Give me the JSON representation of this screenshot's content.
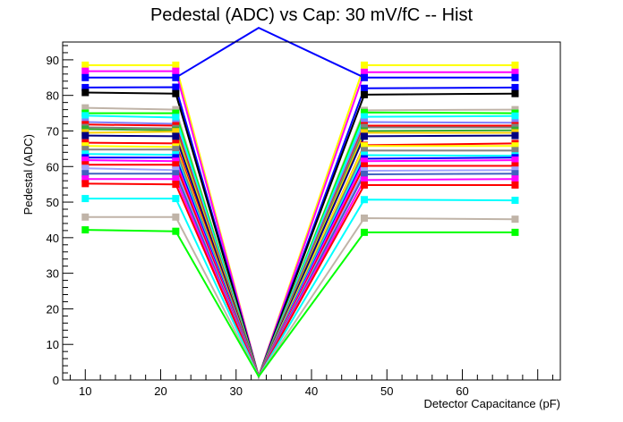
{
  "chart_data": {
    "type": "line",
    "title": "Pedestal (ADC) vs Cap: 30 mV/fC -- Hist",
    "xlabel": "Detector Capacitance (pF)",
    "ylabel": "Pedestal (ADC)",
    "xlim": [
      7,
      73
    ],
    "ylim": [
      0,
      95
    ],
    "xticks": [
      "10",
      "20",
      "30",
      "40",
      "50",
      "60"
    ],
    "yticks": [
      "0",
      "10",
      "20",
      "30",
      "40",
      "50",
      "60",
      "70",
      "80",
      "90"
    ],
    "x": [
      10,
      22,
      33,
      47,
      67
    ],
    "grid": false,
    "series": [
      {
        "color": "#ffff00",
        "values": [
          88.5,
          88.5,
          1,
          88.5,
          88.5
        ]
      },
      {
        "color": "#ff00ff",
        "values": [
          86.8,
          86.8,
          1,
          86.5,
          86.5
        ]
      },
      {
        "color": "#0000ff",
        "values": [
          82.2,
          82.3,
          1,
          82.0,
          82.2
        ]
      },
      {
        "color": "#000000",
        "values": [
          80.8,
          80.5,
          1,
          80.2,
          80.5
        ]
      },
      {
        "color": "#c0b4a8",
        "values": [
          76.5,
          76.0,
          1,
          75.8,
          76.0
        ]
      },
      {
        "color": "#00ff00",
        "values": [
          75.0,
          75.0,
          1,
          75.2,
          75.0
        ]
      },
      {
        "color": "#00ffff",
        "values": [
          74.3,
          73.8,
          1,
          74.0,
          74.2
        ]
      },
      {
        "color": "#8080ff",
        "values": [
          72.5,
          72.0,
          1,
          72.5,
          72.3
        ]
      },
      {
        "color": "#ff0000",
        "values": [
          71.8,
          71.5,
          1,
          71.5,
          71.5
        ]
      },
      {
        "color": "#808080",
        "values": [
          71.0,
          70.7,
          1,
          71.0,
          71.0
        ]
      },
      {
        "color": "#33aa33",
        "values": [
          70.5,
          70.2,
          1,
          70.0,
          70.2
        ]
      },
      {
        "color": "#ffd000",
        "values": [
          69.5,
          69.8,
          1,
          69.5,
          69.5
        ]
      },
      {
        "color": "#000080",
        "values": [
          68.7,
          68.5,
          1,
          68.5,
          68.7
        ]
      },
      {
        "color": "#ff0000",
        "values": [
          66.7,
          66.5,
          1,
          66.0,
          66.5
        ]
      },
      {
        "color": "#ffff00",
        "values": [
          65.8,
          65.5,
          1,
          65.8,
          65.8
        ]
      },
      {
        "color": "#808080",
        "values": [
          64.8,
          64.8,
          1,
          64.5,
          64.5
        ]
      },
      {
        "color": "#00ffff",
        "values": [
          63.5,
          63.3,
          1,
          63.2,
          63.0
        ]
      },
      {
        "color": "#0000ff",
        "values": [
          62.5,
          62.5,
          1,
          62.2,
          62.5
        ]
      },
      {
        "color": "#ff00ff",
        "values": [
          61.8,
          61.5,
          1,
          61.5,
          61.8
        ]
      },
      {
        "color": "#ff0000",
        "values": [
          60.5,
          60.5,
          1,
          60.2,
          60.2
        ]
      },
      {
        "color": "#a0a0ff",
        "values": [
          59.5,
          59.0,
          1,
          58.8,
          59.0
        ]
      },
      {
        "color": "#4060c0",
        "values": [
          58.0,
          58.0,
          1,
          57.8,
          58.0
        ]
      },
      {
        "color": "#ff00ff",
        "values": [
          56.5,
          56.5,
          1,
          56.2,
          56.5
        ]
      },
      {
        "color": "#ff0000",
        "values": [
          55.2,
          55.0,
          1,
          54.8,
          54.8
        ]
      },
      {
        "color": "#00ffff",
        "values": [
          51.0,
          51.0,
          1,
          50.7,
          50.5
        ]
      },
      {
        "color": "#c0b4a8",
        "values": [
          45.8,
          45.8,
          1,
          45.5,
          45.2
        ]
      },
      {
        "color": "#00ff00",
        "values": [
          42.2,
          41.8,
          1,
          41.5,
          41.5
        ]
      },
      {
        "color": "#0000ff",
        "values": [
          85,
          85,
          99,
          85,
          85
        ]
      }
    ]
  }
}
